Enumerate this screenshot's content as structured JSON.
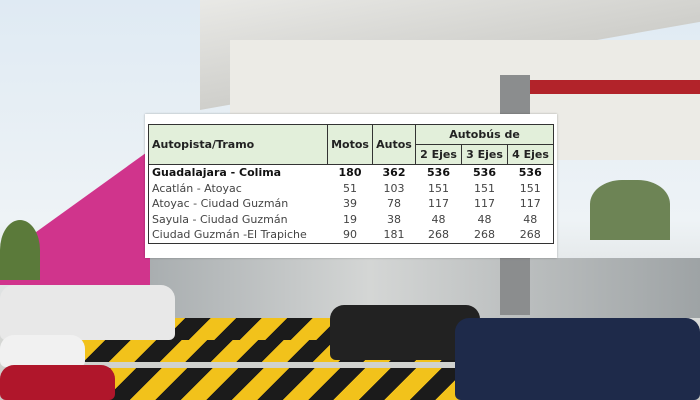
{
  "table": {
    "headers": {
      "route": "Autopista/Tramo",
      "motos": "Motos",
      "autos": "Autos",
      "bus_group": "Autobús de",
      "bus_2": "2 Ejes",
      "bus_3": "3 Ejes",
      "bus_4": "4 Ejes"
    },
    "rows": [
      {
        "route": "Guadalajara - Colima",
        "motos": "180",
        "autos": "362",
        "bus_2": "536",
        "bus_3": "536",
        "bus_4": "536"
      },
      {
        "route": "Acatlán - Atoyac",
        "motos": "51",
        "autos": "103",
        "bus_2": "151",
        "bus_3": "151",
        "bus_4": "151"
      },
      {
        "route": "Atoyac - Ciudad Guzmán",
        "motos": "39",
        "autos": "78",
        "bus_2": "117",
        "bus_3": "117",
        "bus_4": "117"
      },
      {
        "route": "Sayula - Ciudad Guzmán",
        "motos": "19",
        "autos": "38",
        "bus_2": "48",
        "bus_3": "48",
        "bus_4": "48"
      },
      {
        "route": "Ciudad Guzmán -El Trapiche",
        "motos": "90",
        "autos": "181",
        "bus_2": "268",
        "bus_3": "268",
        "bus_4": "268"
      }
    ]
  },
  "colors": {
    "header_bg": "#e2efda",
    "wall": "#d0348c",
    "barrier_yellow": "#f2c21b"
  }
}
